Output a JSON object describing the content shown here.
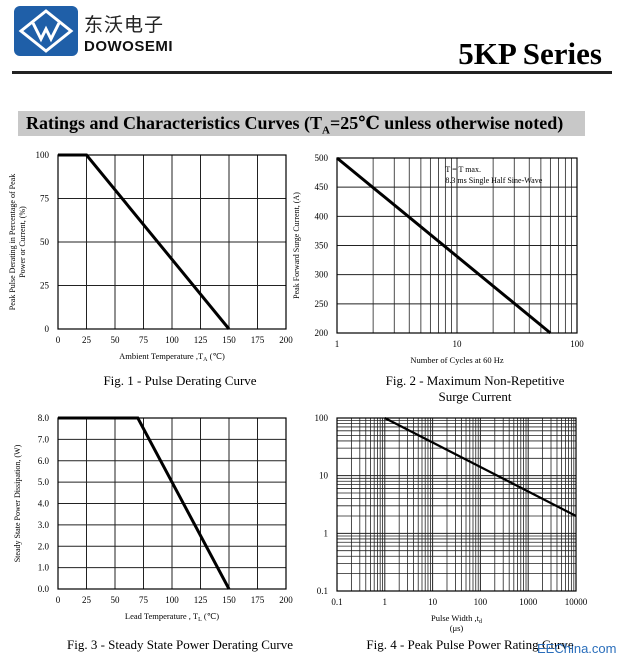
{
  "header": {
    "brand_cn": "东沃电子",
    "brand_en": "DOWOSEMI",
    "series_title": "5KP Series",
    "logo_colors": {
      "primary": "#1f5fa8",
      "accent": "#ffffff"
    }
  },
  "section": {
    "title_prefix": "Ratings and Characteristics Curves (T",
    "title_sub": "A",
    "title_suffix": "=25℃ unless otherwise noted)"
  },
  "watermark": "EEChina.com",
  "chart_data": [
    {
      "type": "line",
      "title": "Fig. 1 - Pulse Derating Curve",
      "xlabel": "Ambient Temperature ,T",
      "xlabel_sub": "A",
      "xlabel_unit": " (℃)",
      "ylabel": [
        "Peak Pulse Derating in Percentage of  Peak",
        "Power or Current, (%)"
      ],
      "xlim": [
        0,
        200
      ],
      "ylim": [
        0,
        100
      ],
      "xticks": [
        "0",
        "25",
        "50",
        "75",
        "100",
        "125",
        "150",
        "175",
        "200"
      ],
      "yticks": [
        "0",
        "25",
        "50",
        "75",
        "100"
      ],
      "series": [
        {
          "x": [
            0,
            25,
            150
          ],
          "y": [
            100,
            100,
            0
          ]
        }
      ]
    },
    {
      "type": "line",
      "title": "Fig. 2 - Maximum Non-Repetitive Surge Current",
      "title_lines": [
        "Fig. 2 - Maximum Non-Repetitive",
        "Surge Current"
      ],
      "xlabel": "Number of Cycles at 60 Hz",
      "ylabel": [
        "Peak Forward Surge Current, (A)"
      ],
      "x_scale": "log",
      "xlim": [
        1,
        100
      ],
      "ylim": [
        200,
        500
      ],
      "xticks": [
        "1",
        "10",
        "100"
      ],
      "yticks": [
        "200",
        "250",
        "300",
        "350",
        "400",
        "450",
        "500"
      ],
      "annotation": [
        "T  = T  max.",
        "8.3 ms Single Half Sine-Wave"
      ],
      "series": [
        {
          "x": [
            1,
            60
          ],
          "y": [
            500,
            200
          ]
        }
      ]
    },
    {
      "type": "line",
      "title": "Fig. 3 - Steady State Power Derating Curve",
      "xlabel": "Lead Temperature , T",
      "xlabel_sub": "L",
      "xlabel_unit": " (℃)",
      "ylabel": [
        "Steady State Power Dissipation, (W)"
      ],
      "xlim": [
        0,
        200
      ],
      "ylim": [
        0,
        8
      ],
      "xticks": [
        "0",
        "25",
        "50",
        "75",
        "100",
        "125",
        "150",
        "175",
        "200"
      ],
      "yticks": [
        "0.0",
        "1.0",
        "2.0",
        "3.0",
        "4.0",
        "5.0",
        "6.0",
        "7.0",
        "8.0"
      ],
      "series": [
        {
          "x": [
            0,
            70,
            150
          ],
          "y": [
            8,
            8,
            0
          ]
        }
      ]
    },
    {
      "type": "line",
      "title": "Fig. 4 - Peak Pulse Power Rating Curve",
      "xlabel": "Pulse Width ,t",
      "xlabel_sub": "d",
      "xlabel_unit": "(μs)",
      "x_scale": "log",
      "y_scale": "log",
      "xlim": [
        0.1,
        10000
      ],
      "ylim": [
        0.1,
        100
      ],
      "xticks": [
        "0.1",
        "1",
        "10",
        "100",
        "1000",
        "10000"
      ],
      "yticks": [
        "0.1",
        "1",
        "10",
        "100"
      ],
      "series": [
        {
          "x": [
            1,
            10000
          ],
          "y": [
            100,
            2
          ]
        }
      ]
    }
  ]
}
